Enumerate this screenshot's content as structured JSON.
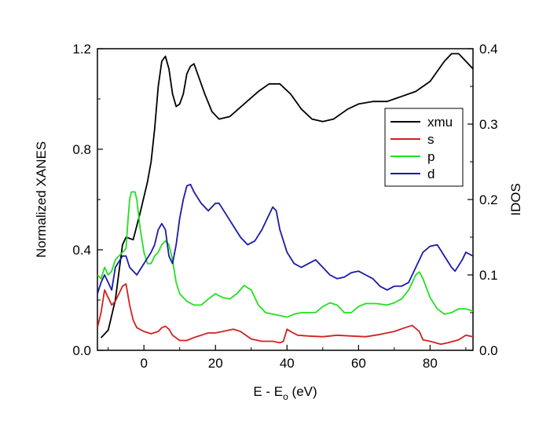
{
  "chart_data": {
    "type": "line",
    "title": "",
    "xlabel": "E - E",
    "xlabel_sub": "o",
    "xlabel_unit": " (eV)",
    "ylabel_left": "Normalized XANES",
    "ylabel_right": "IDOS",
    "xlim": [
      -13,
      92
    ],
    "ylim_left": [
      0,
      1.2
    ],
    "ylim_right": [
      0,
      0.4
    ],
    "x_ticks": [
      0,
      20,
      40,
      60,
      80
    ],
    "x_tick_labels": [
      "0",
      "20",
      "40",
      "60",
      "80"
    ],
    "y_left_ticks": [
      0,
      0.4,
      0.8,
      1.2
    ],
    "y_left_tick_labels": [
      "0.0",
      "0.4",
      "0.8",
      "1.2"
    ],
    "y_right_ticks": [
      0,
      0.1,
      0.2,
      0.3,
      0.4
    ],
    "y_right_tick_labels": [
      "0.0",
      "0.1",
      "0.2",
      "0.3",
      "0.4"
    ],
    "legend_position": "top-right",
    "series": [
      {
        "name": "xmu",
        "axis": "left",
        "color": "#000000",
        "points": [
          [
            -12,
            0.05
          ],
          [
            -10,
            0.08
          ],
          [
            -8,
            0.2
          ],
          [
            -6,
            0.42
          ],
          [
            -5,
            0.45
          ],
          [
            -3,
            0.44
          ],
          [
            -1,
            0.55
          ],
          [
            1,
            0.67
          ],
          [
            2,
            0.75
          ],
          [
            3,
            0.88
          ],
          [
            4,
            1.05
          ],
          [
            5,
            1.15
          ],
          [
            6,
            1.17
          ],
          [
            7,
            1.12
          ],
          [
            8,
            1.02
          ],
          [
            9,
            0.97
          ],
          [
            10,
            0.98
          ],
          [
            11,
            1.02
          ],
          [
            12,
            1.1
          ],
          [
            13,
            1.13
          ],
          [
            14,
            1.14
          ],
          [
            15,
            1.1
          ],
          [
            17,
            1.02
          ],
          [
            19,
            0.95
          ],
          [
            21,
            0.92
          ],
          [
            24,
            0.93
          ],
          [
            28,
            0.98
          ],
          [
            32,
            1.03
          ],
          [
            35,
            1.06
          ],
          [
            38,
            1.06
          ],
          [
            41,
            1.02
          ],
          [
            44,
            0.96
          ],
          [
            47,
            0.92
          ],
          [
            50,
            0.91
          ],
          [
            53,
            0.92
          ],
          [
            57,
            0.96
          ],
          [
            60,
            0.98
          ],
          [
            64,
            0.99
          ],
          [
            68,
            0.99
          ],
          [
            72,
            1.01
          ],
          [
            76,
            1.03
          ],
          [
            80,
            1.07
          ],
          [
            84,
            1.15
          ],
          [
            86,
            1.18
          ],
          [
            88,
            1.18
          ],
          [
            90,
            1.15
          ],
          [
            92,
            1.12
          ]
        ]
      },
      {
        "name": "s",
        "axis": "right",
        "color": "#d42020",
        "points": [
          [
            -13,
            0.03
          ],
          [
            -12,
            0.05
          ],
          [
            -11,
            0.08
          ],
          [
            -10,
            0.07
          ],
          [
            -9,
            0.06
          ],
          [
            -8,
            0.065
          ],
          [
            -6,
            0.085
          ],
          [
            -5,
            0.088
          ],
          [
            -4,
            0.06
          ],
          [
            -3,
            0.04
          ],
          [
            -2,
            0.03
          ],
          [
            0,
            0.025
          ],
          [
            2,
            0.022
          ],
          [
            4,
            0.025
          ],
          [
            5,
            0.03
          ],
          [
            6,
            0.032
          ],
          [
            7,
            0.028
          ],
          [
            8,
            0.02
          ],
          [
            10,
            0.013
          ],
          [
            12,
            0.013
          ],
          [
            14,
            0.017
          ],
          [
            16,
            0.02
          ],
          [
            18,
            0.023
          ],
          [
            20,
            0.023
          ],
          [
            22,
            0.025
          ],
          [
            25,
            0.028
          ],
          [
            27,
            0.025
          ],
          [
            30,
            0.015
          ],
          [
            33,
            0.012
          ],
          [
            36,
            0.012
          ],
          [
            38,
            0.01
          ],
          [
            39,
            0.012
          ],
          [
            40,
            0.028
          ],
          [
            41,
            0.025
          ],
          [
            43,
            0.02
          ],
          [
            46,
            0.019
          ],
          [
            50,
            0.018
          ],
          [
            54,
            0.02
          ],
          [
            58,
            0.019
          ],
          [
            62,
            0.018
          ],
          [
            66,
            0.021
          ],
          [
            70,
            0.025
          ],
          [
            73,
            0.03
          ],
          [
            75,
            0.033
          ],
          [
            77,
            0.025
          ],
          [
            78,
            0.014
          ],
          [
            80,
            0.012
          ],
          [
            83,
            0.008
          ],
          [
            85,
            0.01
          ],
          [
            88,
            0.014
          ],
          [
            90,
            0.02
          ],
          [
            92,
            0.018
          ]
        ]
      },
      {
        "name": "p",
        "axis": "right",
        "color": "#22e022",
        "points": [
          [
            -13,
            0.1
          ],
          [
            -12,
            0.095
          ],
          [
            -11,
            0.11
          ],
          [
            -10,
            0.1
          ],
          [
            -9,
            0.105
          ],
          [
            -8,
            0.12
          ],
          [
            -6,
            0.13
          ],
          [
            -5,
            0.135
          ],
          [
            -4.5,
            0.17
          ],
          [
            -4,
            0.2
          ],
          [
            -3.5,
            0.21
          ],
          [
            -2.5,
            0.21
          ],
          [
            -2,
            0.2
          ],
          [
            -1,
            0.16
          ],
          [
            0,
            0.13
          ],
          [
            1,
            0.115
          ],
          [
            2,
            0.115
          ],
          [
            3,
            0.125
          ],
          [
            4,
            0.13
          ],
          [
            5,
            0.14
          ],
          [
            6,
            0.145
          ],
          [
            7,
            0.14
          ],
          [
            8,
            0.12
          ],
          [
            9,
            0.09
          ],
          [
            10,
            0.075
          ],
          [
            12,
            0.065
          ],
          [
            14,
            0.06
          ],
          [
            16,
            0.06
          ],
          [
            18,
            0.068
          ],
          [
            20,
            0.075
          ],
          [
            22,
            0.07
          ],
          [
            24,
            0.068
          ],
          [
            26,
            0.075
          ],
          [
            28,
            0.086
          ],
          [
            30,
            0.08
          ],
          [
            32,
            0.06
          ],
          [
            34,
            0.05
          ],
          [
            36,
            0.048
          ],
          [
            38,
            0.046
          ],
          [
            40,
            0.044
          ],
          [
            42,
            0.048
          ],
          [
            44,
            0.05
          ],
          [
            46,
            0.05
          ],
          [
            48,
            0.05
          ],
          [
            50,
            0.058
          ],
          [
            52,
            0.063
          ],
          [
            54,
            0.06
          ],
          [
            56,
            0.05
          ],
          [
            58,
            0.05
          ],
          [
            60,
            0.058
          ],
          [
            62,
            0.062
          ],
          [
            65,
            0.062
          ],
          [
            68,
            0.06
          ],
          [
            70,
            0.063
          ],
          [
            72,
            0.068
          ],
          [
            74,
            0.08
          ],
          [
            76,
            0.1
          ],
          [
            77,
            0.104
          ],
          [
            78,
            0.095
          ],
          [
            80,
            0.07
          ],
          [
            82,
            0.055
          ],
          [
            84,
            0.048
          ],
          [
            86,
            0.05
          ],
          [
            88,
            0.055
          ],
          [
            90,
            0.055
          ],
          [
            92,
            0.052
          ]
        ]
      },
      {
        "name": "d",
        "axis": "right",
        "color": "#1a1aaa",
        "points": [
          [
            -13,
            0.075
          ],
          [
            -12,
            0.09
          ],
          [
            -11,
            0.1
          ],
          [
            -10,
            0.09
          ],
          [
            -9,
            0.08
          ],
          [
            -8,
            0.11
          ],
          [
            -6,
            0.125
          ],
          [
            -5,
            0.125
          ],
          [
            -4,
            0.11
          ],
          [
            -2,
            0.1
          ],
          [
            0,
            0.115
          ],
          [
            2,
            0.13
          ],
          [
            3,
            0.14
          ],
          [
            4,
            0.16
          ],
          [
            5,
            0.168
          ],
          [
            6,
            0.16
          ],
          [
            7,
            0.125
          ],
          [
            8,
            0.115
          ],
          [
            9,
            0.14
          ],
          [
            10,
            0.175
          ],
          [
            11,
            0.2
          ],
          [
            12,
            0.218
          ],
          [
            13,
            0.22
          ],
          [
            14,
            0.21
          ],
          [
            16,
            0.195
          ],
          [
            18,
            0.185
          ],
          [
            20,
            0.195
          ],
          [
            21,
            0.195
          ],
          [
            23,
            0.18
          ],
          [
            25,
            0.165
          ],
          [
            27,
            0.15
          ],
          [
            29,
            0.14
          ],
          [
            31,
            0.145
          ],
          [
            33,
            0.16
          ],
          [
            35,
            0.18
          ],
          [
            36,
            0.19
          ],
          [
            37,
            0.185
          ],
          [
            38,
            0.16
          ],
          [
            40,
            0.13
          ],
          [
            42,
            0.115
          ],
          [
            44,
            0.11
          ],
          [
            46,
            0.115
          ],
          [
            48,
            0.12
          ],
          [
            50,
            0.11
          ],
          [
            52,
            0.1
          ],
          [
            54,
            0.095
          ],
          [
            56,
            0.097
          ],
          [
            58,
            0.103
          ],
          [
            60,
            0.105
          ],
          [
            62,
            0.1
          ],
          [
            64,
            0.095
          ],
          [
            66,
            0.085
          ],
          [
            68,
            0.08
          ],
          [
            70,
            0.085
          ],
          [
            72,
            0.085
          ],
          [
            74,
            0.09
          ],
          [
            76,
            0.11
          ],
          [
            78,
            0.13
          ],
          [
            80,
            0.138
          ],
          [
            82,
            0.14
          ],
          [
            84,
            0.125
          ],
          [
            86,
            0.11
          ],
          [
            87,
            0.105
          ],
          [
            89,
            0.12
          ],
          [
            90,
            0.13
          ],
          [
            92,
            0.125
          ]
        ]
      }
    ]
  }
}
